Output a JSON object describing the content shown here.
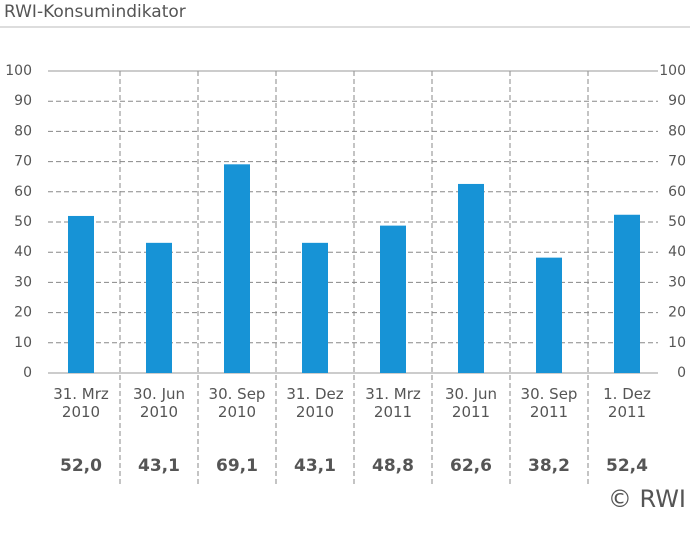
{
  "chart_data": {
    "type": "bar",
    "title": "RWI-Konsumindikator",
    "categories": [
      "31. Mrz\n2010",
      "30. Jun\n2010",
      "30. Sep\n2010",
      "31. Dez\n2010",
      "31. Mrz\n2011",
      "30. Jun\n2011",
      "30. Sep\n2011",
      "1. Dez\n2011"
    ],
    "values": [
      52.0,
      43.1,
      69.1,
      43.1,
      48.8,
      62.6,
      38.2,
      52.4
    ],
    "value_labels": [
      "52,0",
      "43,1",
      "69,1",
      "43,1",
      "48,8",
      "62,6",
      "38,2",
      "52,4"
    ],
    "color": "#1793d6",
    "ylim": [
      0,
      100
    ],
    "yticks": [
      0,
      10,
      20,
      30,
      40,
      50,
      60,
      70,
      80,
      90,
      100
    ],
    "grid": true,
    "credit": "© RWI"
  }
}
